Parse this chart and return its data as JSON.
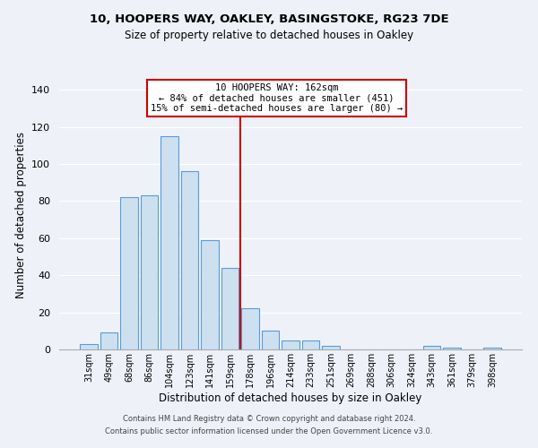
{
  "title1": "10, HOOPERS WAY, OAKLEY, BASINGSTOKE, RG23 7DE",
  "title2": "Size of property relative to detached houses in Oakley",
  "xlabel": "Distribution of detached houses by size in Oakley",
  "ylabel": "Number of detached properties",
  "bar_labels": [
    "31sqm",
    "49sqm",
    "68sqm",
    "86sqm",
    "104sqm",
    "123sqm",
    "141sqm",
    "159sqm",
    "178sqm",
    "196sqm",
    "214sqm",
    "233sqm",
    "251sqm",
    "269sqm",
    "288sqm",
    "306sqm",
    "324sqm",
    "343sqm",
    "361sqm",
    "379sqm",
    "398sqm"
  ],
  "bar_heights": [
    3,
    9,
    82,
    83,
    115,
    96,
    59,
    44,
    22,
    10,
    5,
    5,
    2,
    0,
    0,
    0,
    0,
    2,
    1,
    0,
    1
  ],
  "bar_color": "#cce0f0",
  "bar_edge_color": "#5b9bd5",
  "annotation_line1": "10 HOOPERS WAY: 162sqm",
  "annotation_line2": "← 84% of detached houses are smaller (451)",
  "annotation_line3": "15% of semi-detached houses are larger (80) →",
  "annotation_box_color": "#ffffff",
  "annotation_box_edge_color": "#cc0000",
  "vline_color": "#cc0000",
  "ylim": [
    0,
    145
  ],
  "yticks": [
    0,
    20,
    40,
    60,
    80,
    100,
    120,
    140
  ],
  "footer1": "Contains HM Land Registry data © Crown copyright and database right 2024.",
  "footer2": "Contains public sector information licensed under the Open Government Licence v3.0.",
  "background_color": "#eef2f8",
  "vline_index": 7.5
}
